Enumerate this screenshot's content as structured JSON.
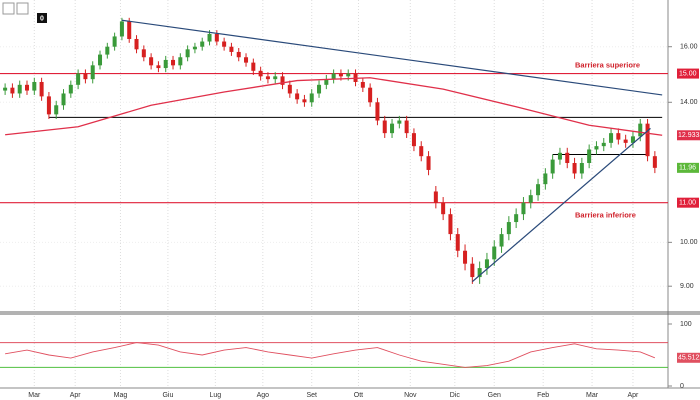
{
  "toolbar_badge": "0",
  "chart_data": [
    {
      "type": "candlestick",
      "log_scale": true,
      "ylim": [
        8.5,
        17.9
      ],
      "yticks": [
        {
          "value": 9,
          "label": "9.00"
        },
        {
          "value": 10,
          "label": "10.00"
        },
        {
          "value": 14,
          "label": "14.00"
        },
        {
          "value": 16,
          "label": "16.00"
        }
      ],
      "xlim": [
        -0.7,
        90.8
      ],
      "xticks": [
        {
          "value": 4,
          "label": "Mar"
        },
        {
          "value": 9.6,
          "label": "Apr"
        },
        {
          "value": 15.8,
          "label": "Mag"
        },
        {
          "value": 22.3,
          "label": "Giu"
        },
        {
          "value": 28.8,
          "label": "Lug"
        },
        {
          "value": 35.3,
          "label": "Ago"
        },
        {
          "value": 42,
          "label": "Set"
        },
        {
          "value": 48.4,
          "label": "Ott"
        },
        {
          "value": 55.5,
          "label": "Nov"
        },
        {
          "value": 61.6,
          "label": "Dic"
        },
        {
          "value": 67,
          "label": "Gen"
        },
        {
          "value": 73.7,
          "label": "Feb"
        },
        {
          "value": 80.4,
          "label": "Mar"
        },
        {
          "value": 86,
          "label": "Apr"
        }
      ],
      "grid": true,
      "up_color": "#3a9a3a",
      "down_color": "#d62020",
      "ohlc": [
        [
          14.4,
          14.65,
          14.25,
          14.5
        ],
        [
          14.5,
          14.65,
          14.15,
          14.3
        ],
        [
          14.3,
          14.75,
          14.15,
          14.6
        ],
        [
          14.6,
          14.75,
          14.25,
          14.4
        ],
        [
          14.4,
          14.85,
          14.25,
          14.7
        ],
        [
          14.7,
          14.85,
          14.05,
          14.2
        ],
        [
          14.2,
          14.35,
          13.45,
          13.6
        ],
        [
          13.6,
          14.05,
          13.45,
          13.9
        ],
        [
          13.9,
          14.45,
          13.75,
          14.3
        ],
        [
          14.3,
          14.75,
          14.15,
          14.6
        ],
        [
          14.6,
          15.15,
          14.45,
          15.0
        ],
        [
          15.0,
          15.15,
          14.65,
          14.8
        ],
        [
          14.8,
          15.45,
          14.65,
          15.3
        ],
        [
          15.3,
          15.85,
          15.15,
          15.7
        ],
        [
          15.7,
          16.15,
          15.55,
          16.0
        ],
        [
          16.0,
          16.55,
          15.85,
          16.4
        ],
        [
          16.4,
          17.15,
          16.25,
          17.0
        ],
        [
          17.0,
          17.15,
          16.15,
          16.3
        ],
        [
          16.3,
          16.45,
          15.75,
          15.9
        ],
        [
          15.9,
          16.05,
          15.45,
          15.6
        ],
        [
          15.6,
          15.75,
          15.15,
          15.3
        ],
        [
          15.3,
          15.45,
          15.05,
          15.2
        ],
        [
          15.2,
          15.65,
          15.05,
          15.5
        ],
        [
          15.5,
          15.65,
          15.15,
          15.3
        ],
        [
          15.3,
          15.75,
          15.15,
          15.6
        ],
        [
          15.6,
          16.05,
          15.45,
          15.9
        ],
        [
          15.9,
          16.15,
          15.75,
          16.0
        ],
        [
          16.0,
          16.35,
          15.85,
          16.2
        ],
        [
          16.2,
          16.65,
          16.05,
          16.5
        ],
        [
          16.5,
          16.65,
          16.05,
          16.2
        ],
        [
          16.2,
          16.35,
          15.85,
          16.0
        ],
        [
          16.0,
          16.15,
          15.65,
          15.8
        ],
        [
          15.8,
          15.95,
          15.45,
          15.6
        ],
        [
          15.6,
          15.75,
          15.25,
          15.4
        ],
        [
          15.4,
          15.55,
          14.95,
          15.1
        ],
        [
          15.1,
          15.25,
          14.75,
          14.9
        ],
        [
          14.9,
          15.05,
          14.65,
          14.8
        ],
        [
          14.8,
          15.05,
          14.65,
          14.9
        ],
        [
          14.9,
          15.05,
          14.45,
          14.6
        ],
        [
          14.6,
          14.75,
          14.15,
          14.3
        ],
        [
          14.3,
          14.45,
          13.95,
          14.1
        ],
        [
          14.1,
          14.25,
          13.85,
          14.0
        ],
        [
          14.0,
          14.45,
          13.85,
          14.3
        ],
        [
          14.3,
          14.75,
          14.15,
          14.6
        ],
        [
          14.6,
          14.95,
          14.45,
          14.8
        ],
        [
          14.8,
          15.15,
          14.65,
          15.0
        ],
        [
          15.0,
          15.15,
          14.75,
          14.9
        ],
        [
          14.9,
          15.15,
          14.75,
          15.0
        ],
        [
          15.0,
          15.15,
          14.55,
          14.7
        ],
        [
          14.7,
          14.85,
          14.35,
          14.5
        ],
        [
          14.5,
          14.65,
          13.85,
          14.0
        ],
        [
          14.0,
          14.15,
          13.25,
          13.4
        ],
        [
          13.4,
          13.55,
          12.85,
          13.0
        ],
        [
          13.0,
          13.45,
          12.85,
          13.3
        ],
        [
          13.3,
          13.55,
          13.15,
          13.4
        ],
        [
          13.4,
          13.55,
          12.85,
          13.0
        ],
        [
          13.0,
          13.15,
          12.45,
          12.6
        ],
        [
          12.6,
          12.75,
          12.15,
          12.3
        ],
        [
          12.3,
          12.45,
          11.75,
          11.9
        ],
        [
          11.3,
          11.45,
          10.85,
          11.0
        ],
        [
          11.0,
          11.15,
          10.55,
          10.7
        ],
        [
          10.7,
          10.85,
          10.05,
          10.2
        ],
        [
          10.2,
          10.35,
          9.65,
          9.8
        ],
        [
          9.8,
          9.95,
          9.35,
          9.5
        ],
        [
          9.5,
          9.65,
          9.05,
          9.2
        ],
        [
          9.2,
          9.55,
          9.05,
          9.4
        ],
        [
          9.4,
          9.75,
          9.25,
          9.6
        ],
        [
          9.6,
          10.05,
          9.45,
          9.9
        ],
        [
          9.9,
          10.35,
          9.75,
          10.2
        ],
        [
          10.2,
          10.65,
          10.05,
          10.5
        ],
        [
          10.5,
          10.85,
          10.35,
          10.7
        ],
        [
          10.7,
          11.15,
          10.55,
          11.0
        ],
        [
          11.0,
          11.35,
          10.85,
          11.2
        ],
        [
          11.2,
          11.65,
          11.05,
          11.5
        ],
        [
          11.5,
          11.95,
          11.35,
          11.8
        ],
        [
          11.8,
          12.35,
          11.65,
          12.2
        ],
        [
          12.2,
          12.55,
          12.05,
          12.4
        ],
        [
          12.4,
          12.55,
          11.95,
          12.1
        ],
        [
          12.1,
          12.25,
          11.65,
          11.8
        ],
        [
          11.8,
          12.25,
          11.65,
          12.1
        ],
        [
          12.1,
          12.65,
          11.95,
          12.5
        ],
        [
          12.5,
          12.75,
          12.35,
          12.6
        ],
        [
          12.6,
          12.85,
          12.45,
          12.7
        ],
        [
          12.7,
          13.15,
          12.55,
          13.0
        ],
        [
          13.0,
          13.15,
          12.65,
          12.8
        ],
        [
          12.8,
          12.95,
          12.55,
          12.7
        ],
        [
          12.7,
          13.05,
          12.55,
          12.9
        ],
        [
          12.9,
          13.45,
          12.75,
          13.3
        ],
        [
          13.3,
          13.45,
          12.15,
          12.3
        ],
        [
          12.3,
          12.45,
          11.81,
          11.96
        ]
      ],
      "moving_average": {
        "color": "#e0304a",
        "x": [
          0,
          10,
          20,
          30,
          40,
          50,
          60,
          70,
          80,
          90
        ],
        "values": [
          12.95,
          13.2,
          13.9,
          14.35,
          14.75,
          14.85,
          14.45,
          13.85,
          13.25,
          12.9333
        ]
      },
      "barriers": [
        {
          "name": "Barriera superiore",
          "value": 15,
          "label": "15.00",
          "color": "#e0203a"
        },
        {
          "name": "Barriera inferiore",
          "value": 11,
          "label": "11.00",
          "color": "#e0203a"
        }
      ],
      "levels": [
        {
          "value": 13.5,
          "x": [
            6,
            90
          ],
          "color": "#000"
        },
        {
          "value": 12.35,
          "x": [
            75,
            88
          ],
          "color": "#000"
        }
      ],
      "trendlines": [
        {
          "x": [
            16,
            90
          ],
          "values": [
            17.05,
            14.25
          ],
          "color": "#2a4a7a"
        },
        {
          "x": [
            64,
            88.4
          ],
          "values": [
            9.1,
            13.15
          ],
          "color": "#2a4a7a"
        }
      ]
    },
    {
      "type": "line",
      "ylim": [
        0,
        100
      ],
      "yticks": [
        0,
        100
      ],
      "color": "#e05060",
      "levels": [
        {
          "value": 70,
          "color": "#e05060"
        },
        {
          "value": 30,
          "color": "#50c040"
        }
      ],
      "x": [
        0,
        3,
        6,
        9,
        12,
        15,
        18,
        21,
        24,
        27,
        30,
        33,
        36,
        39,
        42,
        45,
        48,
        51,
        54,
        57,
        60,
        63,
        66,
        69,
        72,
        75,
        78,
        81,
        84,
        87,
        89
      ],
      "values": [
        52,
        58,
        50,
        45,
        55,
        62,
        70,
        66,
        55,
        50,
        58,
        62,
        55,
        50,
        45,
        52,
        58,
        62,
        50,
        40,
        35,
        30,
        33,
        40,
        55,
        62,
        68,
        60,
        58,
        55,
        45.5122
      ]
    }
  ]
}
